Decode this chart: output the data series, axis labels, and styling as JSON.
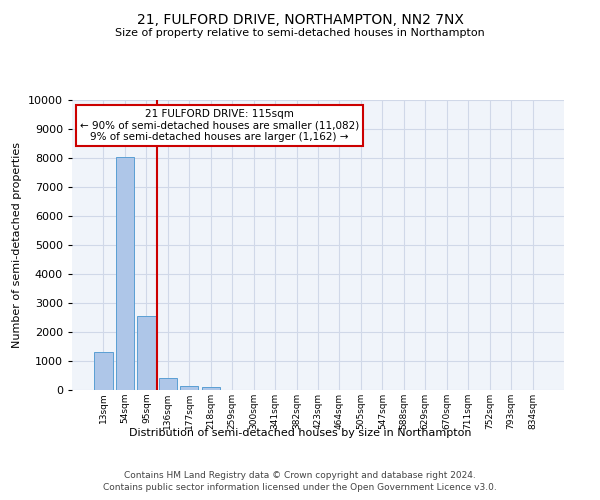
{
  "title": "21, FULFORD DRIVE, NORTHAMPTON, NN2 7NX",
  "subtitle": "Size of property relative to semi-detached houses in Northampton",
  "xlabel": "Distribution of semi-detached houses by size in Northampton",
  "ylabel": "Number of semi-detached properties",
  "footer_line1": "Contains HM Land Registry data © Crown copyright and database right 2024.",
  "footer_line2": "Contains public sector information licensed under the Open Government Licence v3.0.",
  "annotation_line1": "21 FULFORD DRIVE: 115sqm",
  "annotation_line2": "← 90% of semi-detached houses are smaller (11,082)",
  "annotation_line3": "9% of semi-detached houses are larger (1,162) →",
  "bar_color": "#aec6e8",
  "bar_edge_color": "#5a9fd4",
  "vline_color": "#cc0000",
  "annotation_box_color": "#cc0000",
  "grid_color": "#d0d8e8",
  "bg_color": "#f0f4fa",
  "categories": [
    "13sqm",
    "54sqm",
    "95sqm",
    "136sqm",
    "177sqm",
    "218sqm",
    "259sqm",
    "300sqm",
    "341sqm",
    "382sqm",
    "423sqm",
    "464sqm",
    "505sqm",
    "547sqm",
    "588sqm",
    "629sqm",
    "670sqm",
    "711sqm",
    "752sqm",
    "793sqm",
    "834sqm"
  ],
  "values": [
    1300,
    8050,
    2550,
    400,
    150,
    90,
    0,
    0,
    0,
    0,
    0,
    0,
    0,
    0,
    0,
    0,
    0,
    0,
    0,
    0,
    0
  ],
  "ylim": [
    0,
    10000
  ],
  "yticks": [
    0,
    1000,
    2000,
    3000,
    4000,
    5000,
    6000,
    7000,
    8000,
    9000,
    10000
  ],
  "vline_x": 2.5,
  "title_fontsize": 10,
  "subtitle_fontsize": 8,
  "ylabel_fontsize": 8,
  "xlabel_fontsize": 8,
  "ytick_fontsize": 8,
  "xtick_fontsize": 6.5
}
